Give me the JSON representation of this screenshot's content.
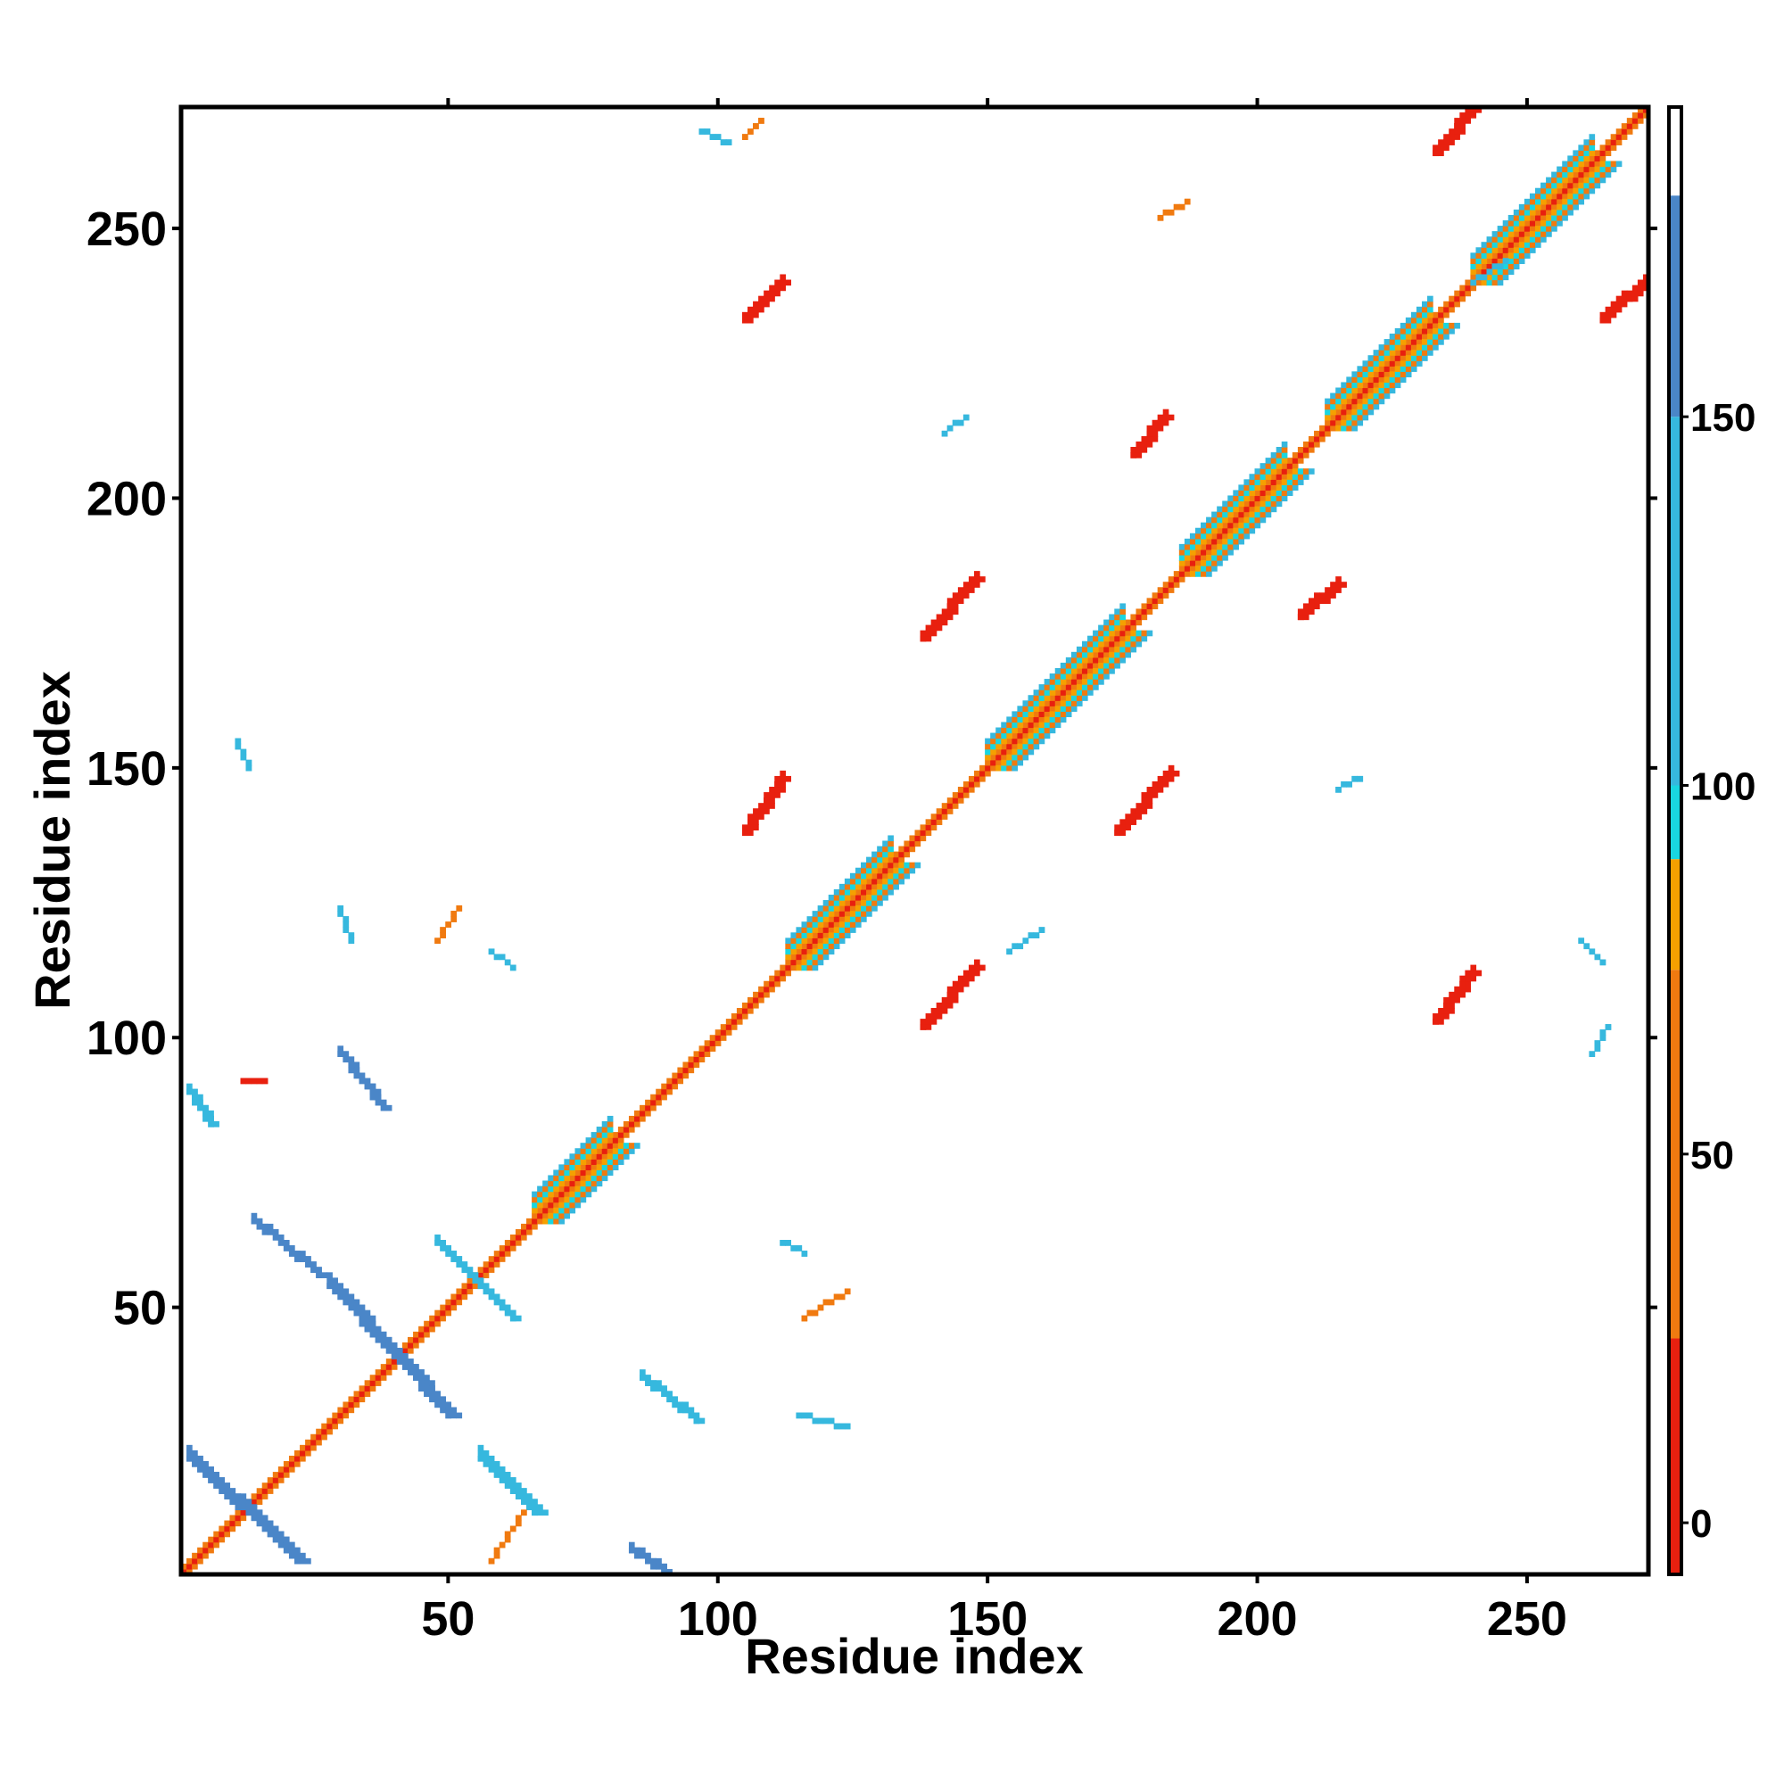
{
  "chart_data": {
    "type": "heatmap",
    "title": "",
    "xlabel": "Residue index",
    "ylabel": "Residue index",
    "xlim": [
      1,
      272
    ],
    "ylim": [
      1,
      272
    ],
    "x_ticks": [
      50,
      100,
      150,
      200,
      250
    ],
    "y_ticks": [
      50,
      100,
      150,
      200,
      250
    ],
    "colorbar": {
      "ticks": [
        0,
        50,
        100,
        150
      ],
      "range": [
        -7,
        192
      ],
      "bands": [
        {
          "from": -7,
          "to": 25,
          "color": "#e8200f"
        },
        {
          "from": 25,
          "to": 75,
          "color": "#f07a10"
        },
        {
          "from": 75,
          "to": 90,
          "color": "#f5a000"
        },
        {
          "from": 90,
          "to": 100,
          "color": "#19d6e0"
        },
        {
          "from": 100,
          "to": 150,
          "color": "#36b8de"
        },
        {
          "from": 150,
          "to": 180,
          "color": "#4a86c8"
        },
        {
          "from": 180,
          "to": 192,
          "color": "#ffffff"
        }
      ]
    },
    "diagonal": {
      "from": 1,
      "to": 272
    },
    "helix_segments": [
      [
        66,
        80
      ],
      [
        113,
        132
      ],
      [
        150,
        175
      ],
      [
        186,
        205
      ],
      [
        213,
        232
      ],
      [
        240,
        262
      ]
    ],
    "contact_features": [
      {
        "x0": 2,
        "y0": 22,
        "x1": 22,
        "y1": 3,
        "category": 160,
        "width": 3
      },
      {
        "x0": 2,
        "y0": 90,
        "x1": 6,
        "y1": 84,
        "category": 125,
        "width": 2
      },
      {
        "x0": 14,
        "y0": 66,
        "x1": 26,
        "y1": 56,
        "category": 160,
        "width": 2
      },
      {
        "x0": 28,
        "y0": 54,
        "x1": 50,
        "y1": 30,
        "category": 150,
        "width": 3
      },
      {
        "x0": 30,
        "y0": 97,
        "x1": 38,
        "y1": 87,
        "category": 160,
        "width": 2
      },
      {
        "x0": 48,
        "y0": 62,
        "x1": 62,
        "y1": 48,
        "category": 140,
        "width": 2
      },
      {
        "x0": 56,
        "y0": 22,
        "x1": 66,
        "y1": 12,
        "category": 120,
        "width": 3
      },
      {
        "x0": 58,
        "y0": 3,
        "x1": 64,
        "y1": 12,
        "category": 60,
        "width": 1
      },
      {
        "x0": 86,
        "y0": 37,
        "x1": 96,
        "y1": 29,
        "category": 140,
        "width": 2
      },
      {
        "x0": 84,
        "y0": 5,
        "x1": 90,
        "y1": 1,
        "category": 160,
        "width": 2
      },
      {
        "x0": 112,
        "y0": 62,
        "x1": 116,
        "y1": 60,
        "category": 130,
        "width": 1
      },
      {
        "x0": 116,
        "y0": 48,
        "x1": 124,
        "y1": 53,
        "category": 50,
        "width": 1
      },
      {
        "x0": 115,
        "y0": 30,
        "x1": 124,
        "y1": 28,
        "category": 110,
        "width": 1
      },
      {
        "x0": 105,
        "y0": 138,
        "x1": 112,
        "y1": 148,
        "category": 10,
        "width": 2
      },
      {
        "x0": 138,
        "y0": 102,
        "x1": 148,
        "y1": 113,
        "category": 10,
        "width": 2
      },
      {
        "x0": 138,
        "y0": 174,
        "x1": 148,
        "y1": 185,
        "category": 10,
        "width": 2
      },
      {
        "x0": 174,
        "y0": 138,
        "x1": 184,
        "y1": 149,
        "category": 10,
        "width": 2
      },
      {
        "x0": 105,
        "y0": 233,
        "x1": 112,
        "y1": 240,
        "category": 10,
        "width": 2
      },
      {
        "x0": 233,
        "y0": 103,
        "x1": 240,
        "y1": 112,
        "category": 10,
        "width": 2
      },
      {
        "x0": 177,
        "y0": 208,
        "x1": 183,
        "y1": 215,
        "category": 10,
        "width": 2
      },
      {
        "x0": 208,
        "y0": 178,
        "x1": 215,
        "y1": 184,
        "category": 10,
        "width": 2
      },
      {
        "x0": 233,
        "y0": 264,
        "x1": 240,
        "y1": 272,
        "category": 10,
        "width": 2
      },
      {
        "x0": 264,
        "y0": 233,
        "x1": 272,
        "y1": 240,
        "category": 10,
        "width": 2
      },
      {
        "x0": 142,
        "y0": 212,
        "x1": 146,
        "y1": 215,
        "category": 130,
        "width": 1
      },
      {
        "x0": 215,
        "y0": 146,
        "x1": 219,
        "y1": 148,
        "category": 130,
        "width": 1
      },
      {
        "x0": 30,
        "y0": 124,
        "x1": 32,
        "y1": 118,
        "category": 120,
        "width": 1
      },
      {
        "x0": 48,
        "y0": 118,
        "x1": 52,
        "y1": 124,
        "category": 50,
        "width": 1
      },
      {
        "x0": 58,
        "y0": 116,
        "x1": 62,
        "y1": 113,
        "category": 120,
        "width": 1
      },
      {
        "x0": 11,
        "y0": 155,
        "x1": 13,
        "y1": 150,
        "category": 120,
        "width": 1
      },
      {
        "x0": 182,
        "y0": 252,
        "x1": 187,
        "y1": 255,
        "category": 60,
        "width": 1
      },
      {
        "x0": 260,
        "y0": 118,
        "x1": 264,
        "y1": 114,
        "category": 120,
        "width": 1
      },
      {
        "x0": 262,
        "y0": 97,
        "x1": 265,
        "y1": 102,
        "category": 120,
        "width": 1
      },
      {
        "x0": 12,
        "y0": 92,
        "x1": 16,
        "y1": 92,
        "category": 20,
        "width": 1
      },
      {
        "x0": 154,
        "y0": 116,
        "x1": 160,
        "y1": 120,
        "category": 110,
        "width": 1
      },
      {
        "x0": 240,
        "y0": 240,
        "x1": 246,
        "y1": 244,
        "category": 100,
        "width": 1
      },
      {
        "x0": 97,
        "y0": 268,
        "x1": 102,
        "y1": 266,
        "category": 120,
        "width": 1
      },
      {
        "x0": 105,
        "y0": 267,
        "x1": 108,
        "y1": 270,
        "category": 40,
        "width": 1
      }
    ]
  }
}
